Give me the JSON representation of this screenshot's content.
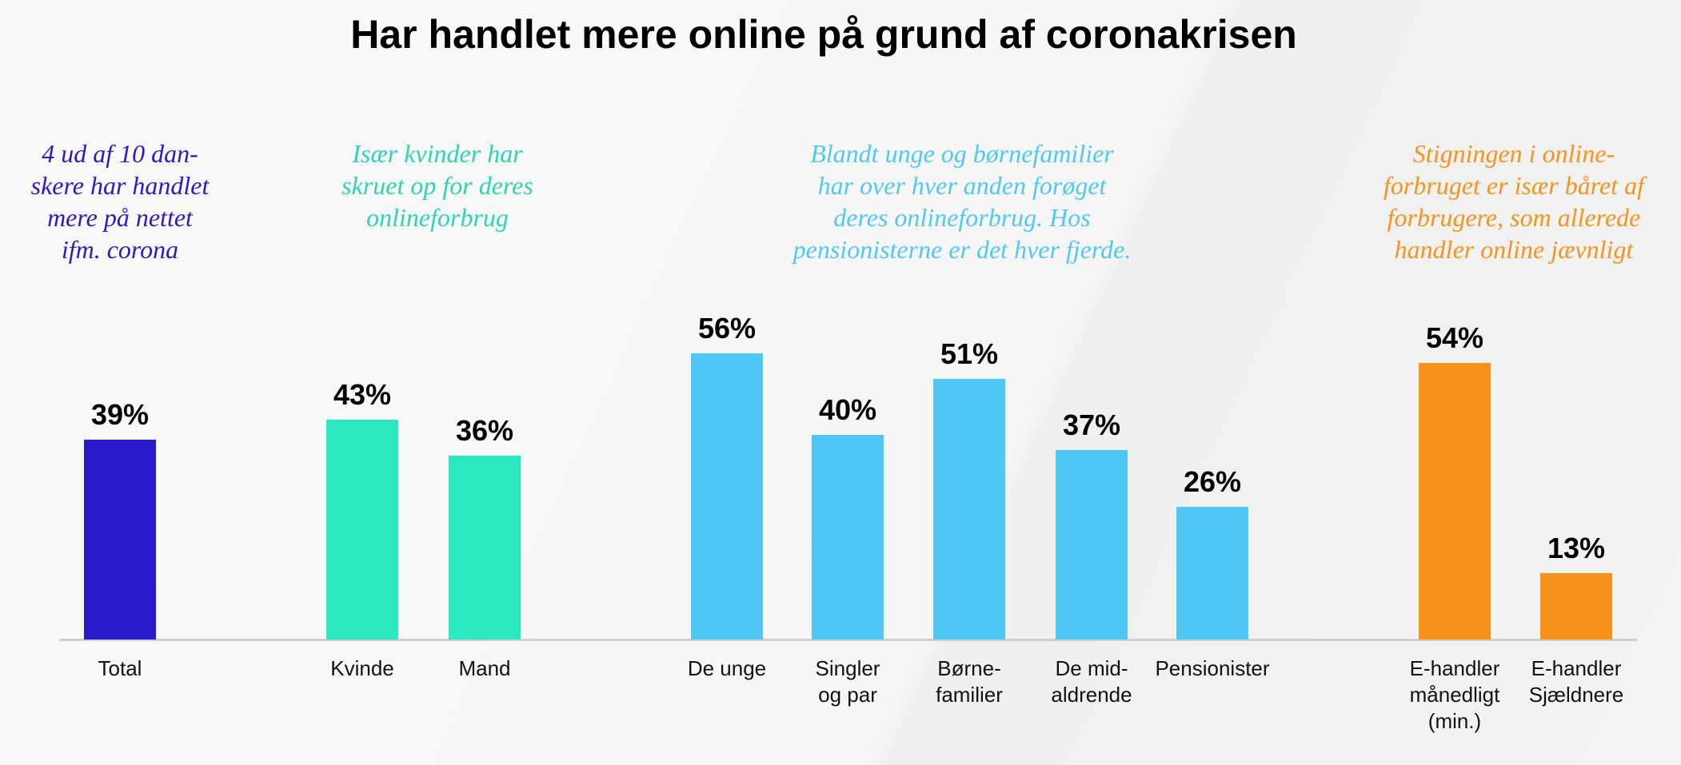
{
  "chart_data": {
    "type": "bar",
    "title": "Har handlet mere online på grund af coronakrisen",
    "categories": [
      "Total",
      "Kvinde",
      "Mand",
      "De unge",
      "Singler\nog par",
      "Børne-\nfamilier",
      "De mid-\naldrende",
      "Pensionister",
      "E-handler\nmånedligt\n(min.)",
      "E-handler\nSjældnere"
    ],
    "values": [
      39,
      43,
      36,
      56,
      40,
      51,
      37,
      26,
      54,
      13
    ],
    "value_labels": [
      "39%",
      "43%",
      "36%",
      "56%",
      "40%",
      "51%",
      "37%",
      "26%",
      "54%",
      "13%"
    ],
    "colors": [
      "#2b1acb",
      "#2ae8c0",
      "#2ae8c0",
      "#4fc8f5",
      "#4fc8f5",
      "#4fc8f5",
      "#4fc8f5",
      "#4fc8f5",
      "#f7931a",
      "#f7931a"
    ],
    "annotations": [
      {
        "text": "4 ud af 10 dan-\nskere har handlet\nmere på nettet\nifm. corona",
        "color": "#2b1acb"
      },
      {
        "text": "Især kvinder har\nskruet op for deres\nonlineforbrug",
        "color": "#2ad6b0"
      },
      {
        "text": "Blandt unge og børnefamilier\nhar over hver anden forøget\nderes onlineforbrug. Hos\npensionisterne er det hver fjerde.",
        "color": "#4fc8f5"
      },
      {
        "text": "Stigningen i online-\nforbruget er især båret af\nforbrugere, som allerede\nhandler online jævnligt",
        "color": "#f7931a"
      }
    ]
  }
}
